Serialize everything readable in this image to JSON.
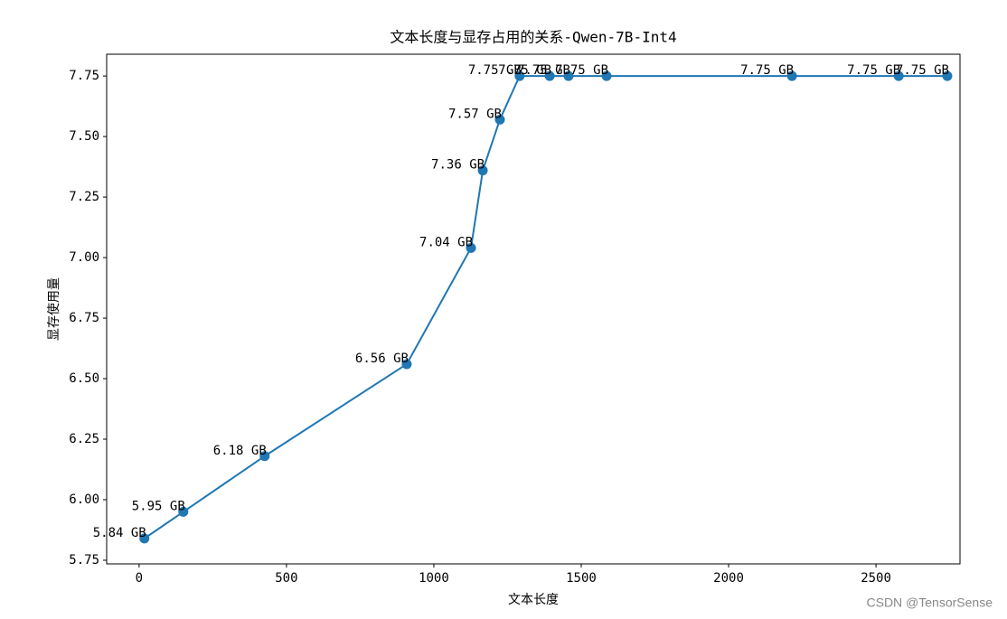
{
  "chart_data": {
    "type": "line",
    "title": "文本长度与显存占用的关系-Qwen-7B-Int4",
    "x_label": "文本长度",
    "y_label": "显存使用量",
    "x": [
      18,
      150,
      426,
      908,
      1126,
      1166,
      1224,
      1291,
      1393,
      1457,
      1586,
      2215,
      2577,
      2742
    ],
    "values": [
      5.84,
      5.95,
      6.18,
      6.56,
      7.04,
      7.36,
      7.57,
      7.75,
      7.75,
      7.75,
      7.75,
      7.75,
      7.75,
      7.75
    ],
    "value_labels": [
      "5.84 GB",
      "5.95 GB",
      "6.18 GB",
      "6.56 GB",
      "7.04 GB",
      "7.36 GB",
      "7.57 GB",
      "7.75 GB",
      "7.75 GB",
      "7.75 GB",
      "7.75 GB",
      "7.75 GB",
      "7.75 GB",
      "7.75 GB"
    ],
    "color": "#1f77b4",
    "markers": true,
    "xlim": [
      -110,
      2785
    ],
    "ylim": [
      5.735,
      7.84
    ],
    "xticks": [
      0,
      500,
      1000,
      1500,
      2000,
      2500
    ],
    "yticks": [
      5.75,
      {
        "value": 6.0,
        "label": "6.00"
      },
      6.25,
      {
        "value": 6.5,
        "label": "6.50"
      },
      6.75,
      {
        "value": 7.0,
        "label": "7.00"
      },
      7.25,
      {
        "value": 7.5,
        "label": "7.50"
      },
      7.75
    ]
  },
  "watermark": "CSDN @TensorSense"
}
